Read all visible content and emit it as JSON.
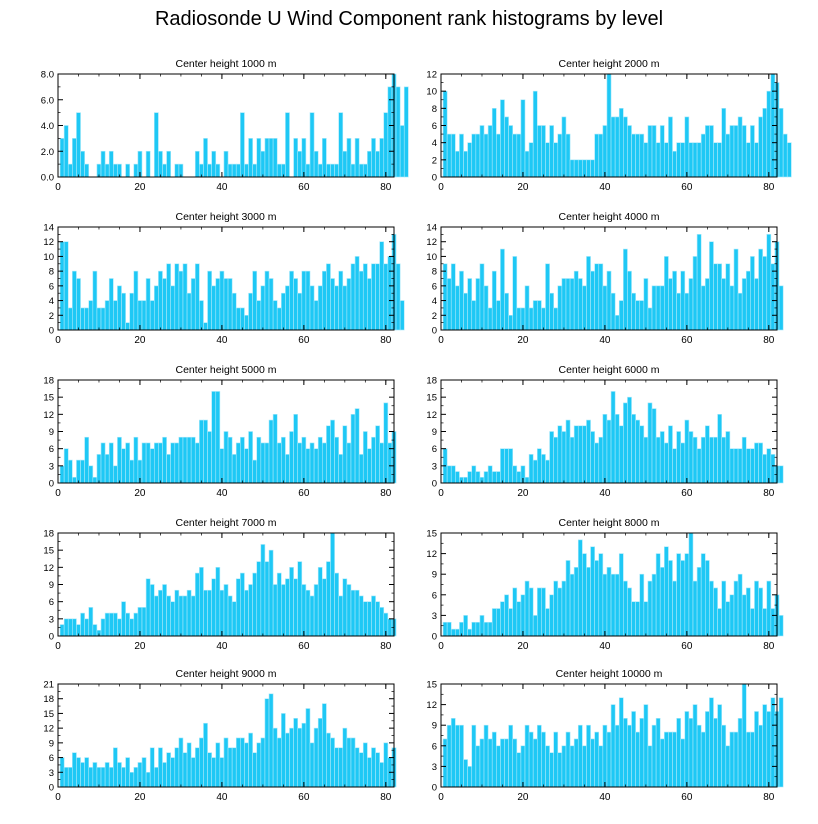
{
  "figure": {
    "title": "Radiosonde U Wind Component rank histograms by level",
    "bar_color": "#1ec8f5",
    "bar_edge_color": "#a8e8fa",
    "axis_color": "#000000"
  },
  "chart_data": [
    {
      "type": "bar",
      "title": "Center height 1000 m",
      "xlim": [
        0,
        82
      ],
      "ylim": [
        0,
        8
      ],
      "xticks": [
        0,
        20,
        40,
        60,
        80
      ],
      "xtick_labels": [
        "0",
        "20",
        "40",
        "60",
        "80"
      ],
      "yticks": [
        0,
        2,
        4,
        6,
        8
      ],
      "ytick_labels": [
        "0.0",
        "2.0",
        "4.0",
        "6.0",
        "8.0"
      ],
      "values": [
        3,
        4,
        1,
        3,
        5,
        2,
        1,
        0,
        0,
        1,
        2,
        1,
        2,
        1,
        1,
        0,
        1,
        0,
        1,
        2,
        0,
        2,
        0,
        5,
        2,
        1,
        2,
        0,
        1,
        1,
        0,
        0,
        0,
        2,
        1,
        3,
        1,
        2,
        1,
        0,
        2,
        1,
        1,
        1,
        5,
        1,
        3,
        1,
        3,
        2,
        3,
        3,
        3,
        1,
        1,
        5,
        0,
        3,
        2,
        3,
        1,
        5,
        2,
        1,
        3,
        1,
        1,
        1,
        5,
        2,
        3,
        1,
        3,
        1,
        1,
        2,
        3,
        2,
        3,
        5,
        7,
        8,
        7,
        4,
        7
      ]
    },
    {
      "type": "bar",
      "title": "Center height 2000 m",
      "xlim": [
        0,
        82
      ],
      "ylim": [
        0,
        12
      ],
      "xticks": [
        0,
        20,
        40,
        60,
        80
      ],
      "xtick_labels": [
        "0",
        "20",
        "40",
        "60",
        "80"
      ],
      "yticks": [
        0,
        2,
        4,
        6,
        8,
        10,
        12
      ],
      "ytick_labels": [
        "0",
        "2",
        "4",
        "6",
        "8",
        "10",
        "12"
      ],
      "values": [
        10,
        5,
        5,
        3,
        5,
        3,
        4,
        5,
        5,
        6,
        5,
        6,
        8,
        5,
        9,
        7,
        6,
        5,
        5,
        9,
        3,
        4,
        10,
        6,
        6,
        4,
        6,
        4,
        5,
        7,
        5,
        2,
        2,
        2,
        2,
        2,
        2,
        5,
        5,
        6,
        12,
        7,
        7,
        8,
        7,
        6,
        5,
        5,
        5,
        4,
        6,
        6,
        4,
        6,
        4,
        7,
        3,
        4,
        4,
        7,
        4,
        4,
        4,
        5,
        6,
        6,
        4,
        4,
        8,
        5,
        6,
        6,
        7,
        6,
        4,
        6,
        4,
        7,
        8,
        10,
        12,
        11,
        8,
        5,
        4
      ]
    },
    {
      "type": "bar",
      "title": "Center height 3000 m",
      "xlim": [
        0,
        82
      ],
      "ylim": [
        0,
        14
      ],
      "xticks": [
        0,
        20,
        40,
        60,
        80
      ],
      "xtick_labels": [
        "0",
        "20",
        "40",
        "60",
        "80"
      ],
      "yticks": [
        0,
        2,
        4,
        6,
        8,
        10,
        12,
        14
      ],
      "ytick_labels": [
        "0",
        "2",
        "4",
        "6",
        "8",
        "10",
        "12",
        "14"
      ],
      "values": [
        12,
        12,
        3,
        8,
        7,
        3,
        3,
        4,
        8,
        3,
        3,
        4,
        7,
        4,
        6,
        5,
        1,
        5,
        8,
        4,
        4,
        7,
        4,
        6,
        8,
        7,
        9,
        6,
        9,
        8,
        9,
        5,
        7,
        9,
        4,
        1,
        8,
        6,
        7,
        8,
        7,
        7,
        5,
        3,
        3,
        2,
        5,
        8,
        4,
        6,
        8,
        7,
        4,
        3,
        5,
        6,
        8,
        7,
        5,
        8,
        8,
        6,
        4,
        6,
        8,
        9,
        7,
        6,
        8,
        6,
        7,
        9,
        10,
        8,
        9,
        7,
        9,
        9,
        12,
        9,
        10,
        13,
        9,
        4
      ]
    },
    {
      "type": "bar",
      "title": "Center height 4000 m",
      "xlim": [
        0,
        82
      ],
      "ylim": [
        0,
        14
      ],
      "xticks": [
        0,
        20,
        40,
        60,
        80
      ],
      "xtick_labels": [
        "0",
        "20",
        "40",
        "60",
        "80"
      ],
      "yticks": [
        0,
        2,
        4,
        6,
        8,
        10,
        12,
        14
      ],
      "ytick_labels": [
        "0",
        "2",
        "4",
        "6",
        "8",
        "10",
        "12",
        "14"
      ],
      "values": [
        9,
        7,
        9,
        6,
        8,
        5,
        7,
        4,
        7,
        9,
        6,
        3,
        8,
        4,
        11,
        5,
        2,
        10,
        3,
        3,
        6,
        3,
        4,
        4,
        3,
        9,
        5,
        3,
        6,
        7,
        7,
        7,
        8,
        7,
        6,
        10,
        8,
        9,
        9,
        6,
        8,
        5,
        2,
        4,
        11,
        8,
        5,
        4,
        4,
        7,
        3,
        6,
        6,
        6,
        10,
        7,
        8,
        5,
        8,
        5,
        7,
        10,
        13,
        6,
        7,
        12,
        9,
        9,
        7,
        9,
        6,
        11,
        5,
        7,
        8,
        10,
        7,
        11,
        10,
        13,
        9,
        12,
        6
      ]
    },
    {
      "type": "bar",
      "title": "Center height 5000 m",
      "xlim": [
        0,
        82
      ],
      "ylim": [
        0,
        18
      ],
      "xticks": [
        0,
        20,
        40,
        60,
        80
      ],
      "xtick_labels": [
        "0",
        "20",
        "40",
        "60",
        "80"
      ],
      "yticks": [
        0,
        3,
        6,
        9,
        12,
        15,
        18
      ],
      "ytick_labels": [
        "0",
        "3",
        "6",
        "9",
        "12",
        "15",
        "18"
      ],
      "values": [
        3,
        6,
        4,
        1,
        4,
        4,
        8,
        3,
        1,
        5,
        7,
        5,
        7,
        3,
        8,
        6,
        7,
        4,
        8,
        4,
        7,
        7,
        6,
        7,
        7,
        8,
        5,
        7,
        7,
        8,
        8,
        8,
        8,
        7,
        11,
        11,
        9,
        16,
        16,
        6,
        9,
        8,
        5,
        7,
        8,
        6,
        9,
        4,
        8,
        7,
        7,
        11,
        12,
        7,
        8,
        5,
        9,
        12,
        7,
        8,
        6,
        7,
        6,
        8,
        7,
        10,
        11,
        8,
        5,
        10,
        7,
        12,
        13,
        5,
        9,
        6,
        8,
        10,
        7,
        14,
        7,
        9
      ]
    },
    {
      "type": "bar",
      "title": "Center height 6000 m",
      "xlim": [
        0,
        82
      ],
      "ylim": [
        0,
        18
      ],
      "xticks": [
        0,
        20,
        40,
        60,
        80
      ],
      "xtick_labels": [
        "0",
        "20",
        "40",
        "60",
        "80"
      ],
      "yticks": [
        0,
        3,
        6,
        9,
        12,
        15,
        18
      ],
      "ytick_labels": [
        "0",
        "3",
        "6",
        "9",
        "12",
        "15",
        "18"
      ],
      "values": [
        6,
        3,
        3,
        2,
        1,
        1,
        2,
        3,
        2,
        1,
        2,
        3,
        2,
        2,
        6,
        6,
        6,
        3,
        2,
        3,
        1,
        5,
        4,
        6,
        5,
        4,
        9,
        8,
        10,
        9,
        11,
        8,
        10,
        10,
        10,
        11,
        9,
        7,
        8,
        12,
        11,
        16,
        12,
        10,
        14,
        15,
        12,
        11,
        10,
        8,
        14,
        13,
        8,
        9,
        7,
        10,
        6,
        9,
        7,
        11,
        9,
        8,
        6,
        8,
        10,
        8,
        8,
        12,
        8,
        9,
        6,
        6,
        6,
        8,
        6,
        6,
        7,
        7,
        5,
        6,
        5,
        3,
        3
      ]
    },
    {
      "type": "bar",
      "title": "Center height 7000 m",
      "xlim": [
        0,
        82
      ],
      "ylim": [
        0,
        18
      ],
      "xticks": [
        0,
        20,
        40,
        60,
        80
      ],
      "xtick_labels": [
        "0",
        "20",
        "40",
        "60",
        "80"
      ],
      "yticks": [
        0,
        3,
        6,
        9,
        12,
        15,
        18
      ],
      "ytick_labels": [
        "0",
        "3",
        "6",
        "9",
        "12",
        "15",
        "18"
      ],
      "values": [
        2,
        3,
        3,
        3,
        2,
        4,
        3,
        5,
        2,
        1,
        3,
        4,
        4,
        4,
        3,
        6,
        4,
        3,
        4,
        5,
        5,
        10,
        9,
        7,
        8,
        9,
        7,
        6,
        8,
        7,
        7,
        8,
        7,
        11,
        12,
        8,
        8,
        10,
        12,
        8,
        9,
        7,
        6,
        10,
        11,
        8,
        9,
        11,
        13,
        16,
        13,
        15,
        9,
        11,
        9,
        10,
        12,
        10,
        13,
        9,
        8,
        7,
        9,
        12,
        10,
        13,
        18,
        11,
        7,
        10,
        9,
        8,
        8,
        7,
        6,
        6,
        7,
        6,
        5,
        4,
        3,
        3
      ]
    },
    {
      "type": "bar",
      "title": "Center height 8000 m",
      "xlim": [
        0,
        82
      ],
      "ylim": [
        0,
        15
      ],
      "xticks": [
        0,
        20,
        40,
        60,
        80
      ],
      "xtick_labels": [
        "0",
        "20",
        "40",
        "60",
        "80"
      ],
      "yticks": [
        0,
        3,
        6,
        9,
        12,
        15
      ],
      "ytick_labels": [
        "0",
        "3",
        "6",
        "9",
        "12",
        "15"
      ],
      "values": [
        2,
        2,
        1,
        1,
        2,
        3,
        1,
        2,
        2,
        3,
        2,
        2,
        4,
        4,
        5,
        6,
        4,
        7,
        5,
        6,
        8,
        7,
        3,
        7,
        7,
        4,
        6,
        8,
        7,
        8,
        11,
        9,
        10,
        14,
        12,
        10,
        13,
        11,
        12,
        9,
        10,
        9,
        9,
        12,
        8,
        7,
        5,
        5,
        9,
        5,
        8,
        9,
        12,
        10,
        13,
        11,
        8,
        12,
        11,
        12,
        15,
        8,
        10,
        12,
        11,
        8,
        7,
        4,
        8,
        5,
        6,
        8,
        9,
        6,
        7,
        4,
        8,
        7,
        4,
        8,
        4,
        6,
        3
      ]
    },
    {
      "type": "bar",
      "title": "Center height 9000 m",
      "xlim": [
        0,
        82
      ],
      "ylim": [
        0,
        21
      ],
      "xticks": [
        0,
        20,
        40,
        60,
        80
      ],
      "xtick_labels": [
        "0",
        "20",
        "40",
        "60",
        "80"
      ],
      "yticks": [
        0,
        3,
        6,
        9,
        12,
        15,
        18,
        21
      ],
      "ytick_labels": [
        "0",
        "3",
        "6",
        "9",
        "12",
        "15",
        "18",
        "21"
      ],
      "values": [
        6,
        4,
        4,
        7,
        6,
        5,
        6,
        4,
        5,
        4,
        4,
        5,
        4,
        8,
        5,
        4,
        6,
        3,
        4,
        5,
        6,
        3,
        8,
        4,
        8,
        5,
        7,
        6,
        8,
        10,
        7,
        9,
        6,
        8,
        10,
        13,
        7,
        6,
        9,
        6,
        10,
        8,
        8,
        10,
        10,
        9,
        11,
        7,
        9,
        10,
        18,
        19,
        12,
        10,
        15,
        11,
        12,
        14,
        12,
        13,
        16,
        9,
        12,
        14,
        17,
        11,
        10,
        8,
        8,
        12,
        10,
        10,
        8,
        7,
        9,
        6,
        8,
        7,
        5,
        9,
        6,
        8
      ]
    },
    {
      "type": "bar",
      "title": "Center height 10000 m",
      "xlim": [
        0,
        82
      ],
      "ylim": [
        0,
        15
      ],
      "xticks": [
        0,
        20,
        40,
        60,
        80
      ],
      "xtick_labels": [
        "0",
        "20",
        "40",
        "60",
        "80"
      ],
      "yticks": [
        0,
        3,
        6,
        9,
        12,
        15
      ],
      "ytick_labels": [
        "0",
        "3",
        "6",
        "9",
        "12",
        "15"
      ],
      "values": [
        7,
        9,
        10,
        9,
        9,
        4,
        3,
        9,
        6,
        7,
        9,
        7,
        8,
        6,
        7,
        7,
        9,
        7,
        5,
        6,
        9,
        8,
        7,
        9,
        8,
        6,
        5,
        8,
        5,
        6,
        8,
        6,
        7,
        9,
        6,
        9,
        7,
        8,
        6,
        9,
        8,
        12,
        9,
        13,
        10,
        9,
        11,
        8,
        10,
        12,
        6,
        9,
        10,
        7,
        8,
        8,
        8,
        10,
        7,
        11,
        10,
        12,
        9,
        8,
        11,
        13,
        10,
        12,
        9,
        6,
        8,
        8,
        10,
        15,
        8,
        8,
        11,
        9,
        12,
        11,
        13,
        11,
        13
      ]
    }
  ]
}
